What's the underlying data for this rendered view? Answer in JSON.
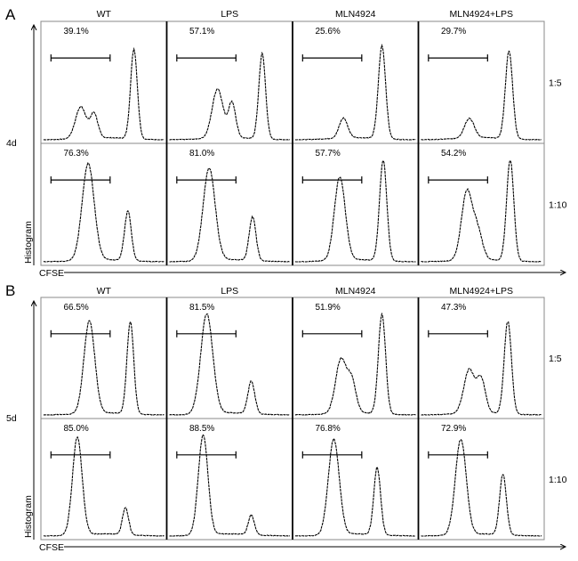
{
  "chart_data": {
    "type": "line",
    "xlabel": "CFSE",
    "ylabel": "Histogram",
    "panels": [
      {
        "letter": "A",
        "day": "4d",
        "columns": [
          "WT",
          "LPS",
          "MLN4924",
          "MLN4924+LPS"
        ],
        "rows": [
          {
            "ratio": "1:5",
            "cells": [
              {
                "percent": "39.1%",
                "peaks": [
                  {
                    "x": 0.31,
                    "h": 0.29,
                    "w": 0.045
                  },
                  {
                    "x": 0.42,
                    "h": 0.22,
                    "w": 0.03
                  },
                  {
                    "x": 0.75,
                    "h": 0.82,
                    "w": 0.028
                  }
                ]
              },
              {
                "percent": "57.1%",
                "peaks": [
                  {
                    "x": 0.4,
                    "h": 0.45,
                    "w": 0.045
                  },
                  {
                    "x": 0.52,
                    "h": 0.32,
                    "w": 0.03
                  },
                  {
                    "x": 0.77,
                    "h": 0.78,
                    "w": 0.028
                  }
                ]
              },
              {
                "percent": "25.6%",
                "peaks": [
                  {
                    "x": 0.4,
                    "h": 0.18,
                    "w": 0.035
                  },
                  {
                    "x": 0.72,
                    "h": 0.85,
                    "w": 0.03
                  }
                ]
              },
              {
                "percent": "29.7%",
                "peaks": [
                  {
                    "x": 0.4,
                    "h": 0.18,
                    "w": 0.04
                  },
                  {
                    "x": 0.73,
                    "h": 0.8,
                    "w": 0.03
                  }
                ]
              }
            ]
          },
          {
            "ratio": "1:10",
            "cells": [
              {
                "percent": "76.3%",
                "peaks": [
                  {
                    "x": 0.37,
                    "h": 0.88,
                    "w": 0.05
                  },
                  {
                    "x": 0.7,
                    "h": 0.45,
                    "w": 0.028
                  }
                ]
              },
              {
                "percent": "81.0%",
                "peaks": [
                  {
                    "x": 0.33,
                    "h": 0.84,
                    "w": 0.05
                  },
                  {
                    "x": 0.69,
                    "h": 0.4,
                    "w": 0.028
                  }
                ]
              },
              {
                "percent": "57.7%",
                "peaks": [
                  {
                    "x": 0.37,
                    "h": 0.76,
                    "w": 0.045
                  },
                  {
                    "x": 0.73,
                    "h": 0.92,
                    "w": 0.03
                  }
                ]
              },
              {
                "percent": "54.2%",
                "peaks": [
                  {
                    "x": 0.38,
                    "h": 0.62,
                    "w": 0.045
                  },
                  {
                    "x": 0.47,
                    "h": 0.25,
                    "w": 0.04
                  },
                  {
                    "x": 0.74,
                    "h": 0.92,
                    "w": 0.03
                  }
                ]
              }
            ]
          }
        ]
      },
      {
        "letter": "B",
        "day": "5d",
        "columns": [
          "WT",
          "LPS",
          "MLN4924",
          "MLN4924+LPS"
        ],
        "rows": [
          {
            "ratio": "1:5",
            "cells": [
              {
                "percent": "66.5%",
                "peaks": [
                  {
                    "x": 0.38,
                    "h": 0.85,
                    "w": 0.045
                  },
                  {
                    "x": 0.72,
                    "h": 0.85,
                    "w": 0.028
                  }
                ]
              },
              {
                "percent": "81.5%",
                "peaks": [
                  {
                    "x": 0.31,
                    "h": 0.92,
                    "w": 0.05
                  },
                  {
                    "x": 0.68,
                    "h": 0.3,
                    "w": 0.028
                  }
                ]
              },
              {
                "percent": "51.9%",
                "peaks": [
                  {
                    "x": 0.38,
                    "h": 0.5,
                    "w": 0.045
                  },
                  {
                    "x": 0.47,
                    "h": 0.28,
                    "w": 0.035
                  },
                  {
                    "x": 0.72,
                    "h": 0.92,
                    "w": 0.03
                  }
                ]
              },
              {
                "percent": "47.3%",
                "peaks": [
                  {
                    "x": 0.4,
                    "h": 0.4,
                    "w": 0.045
                  },
                  {
                    "x": 0.5,
                    "h": 0.3,
                    "w": 0.035
                  },
                  {
                    "x": 0.72,
                    "h": 0.85,
                    "w": 0.03
                  }
                ]
              }
            ]
          },
          {
            "ratio": "1:10",
            "cells": [
              {
                "percent": "85.0%",
                "peaks": [
                  {
                    "x": 0.28,
                    "h": 0.9,
                    "w": 0.04
                  },
                  {
                    "x": 0.68,
                    "h": 0.25,
                    "w": 0.025
                  }
                ]
              },
              {
                "percent": "88.5%",
                "peaks": [
                  {
                    "x": 0.28,
                    "h": 0.92,
                    "w": 0.04
                  },
                  {
                    "x": 0.68,
                    "h": 0.18,
                    "w": 0.025
                  }
                ]
              },
              {
                "percent": "76.8%",
                "peaks": [
                  {
                    "x": 0.32,
                    "h": 0.88,
                    "w": 0.045
                  },
                  {
                    "x": 0.68,
                    "h": 0.62,
                    "w": 0.028
                  }
                ]
              },
              {
                "percent": "72.9%",
                "peaks": [
                  {
                    "x": 0.33,
                    "h": 0.88,
                    "w": 0.045
                  },
                  {
                    "x": 0.68,
                    "h": 0.56,
                    "w": 0.028
                  }
                ]
              }
            ]
          }
        ]
      }
    ]
  }
}
